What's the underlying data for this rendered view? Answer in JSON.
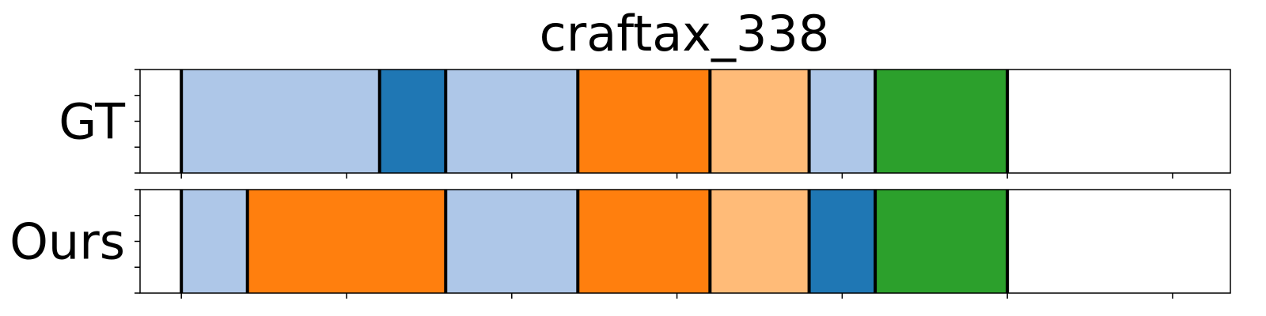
{
  "chart_data": {
    "type": "segmentation-timeline",
    "title": "craftax_338",
    "x_range": [
      0,
      660
    ],
    "x_ticks": [
      25,
      125,
      225,
      325,
      425,
      525,
      625
    ],
    "y_ticks_per_row": 5,
    "palette": {
      "light_blue": "#aec7e8",
      "blue": "#1f77b4",
      "orange": "#ff7f0e",
      "light_orange": "#ffbb78",
      "green": "#2ca02c"
    },
    "rows": [
      {
        "label": "GT",
        "segments": [
          {
            "start": 25,
            "end": 145,
            "color": "light_blue"
          },
          {
            "start": 145,
            "end": 185,
            "color": "blue"
          },
          {
            "start": 185,
            "end": 265,
            "color": "light_blue"
          },
          {
            "start": 265,
            "end": 345,
            "color": "orange"
          },
          {
            "start": 345,
            "end": 405,
            "color": "light_orange"
          },
          {
            "start": 405,
            "end": 445,
            "color": "light_blue"
          },
          {
            "start": 445,
            "end": 525,
            "color": "green"
          }
        ]
      },
      {
        "label": "Ours",
        "segments": [
          {
            "start": 25,
            "end": 65,
            "color": "light_blue"
          },
          {
            "start": 65,
            "end": 185,
            "color": "orange"
          },
          {
            "start": 185,
            "end": 265,
            "color": "light_blue"
          },
          {
            "start": 265,
            "end": 345,
            "color": "orange"
          },
          {
            "start": 345,
            "end": 405,
            "color": "light_orange"
          },
          {
            "start": 405,
            "end": 445,
            "color": "blue"
          },
          {
            "start": 445,
            "end": 525,
            "color": "green"
          }
        ]
      }
    ]
  }
}
